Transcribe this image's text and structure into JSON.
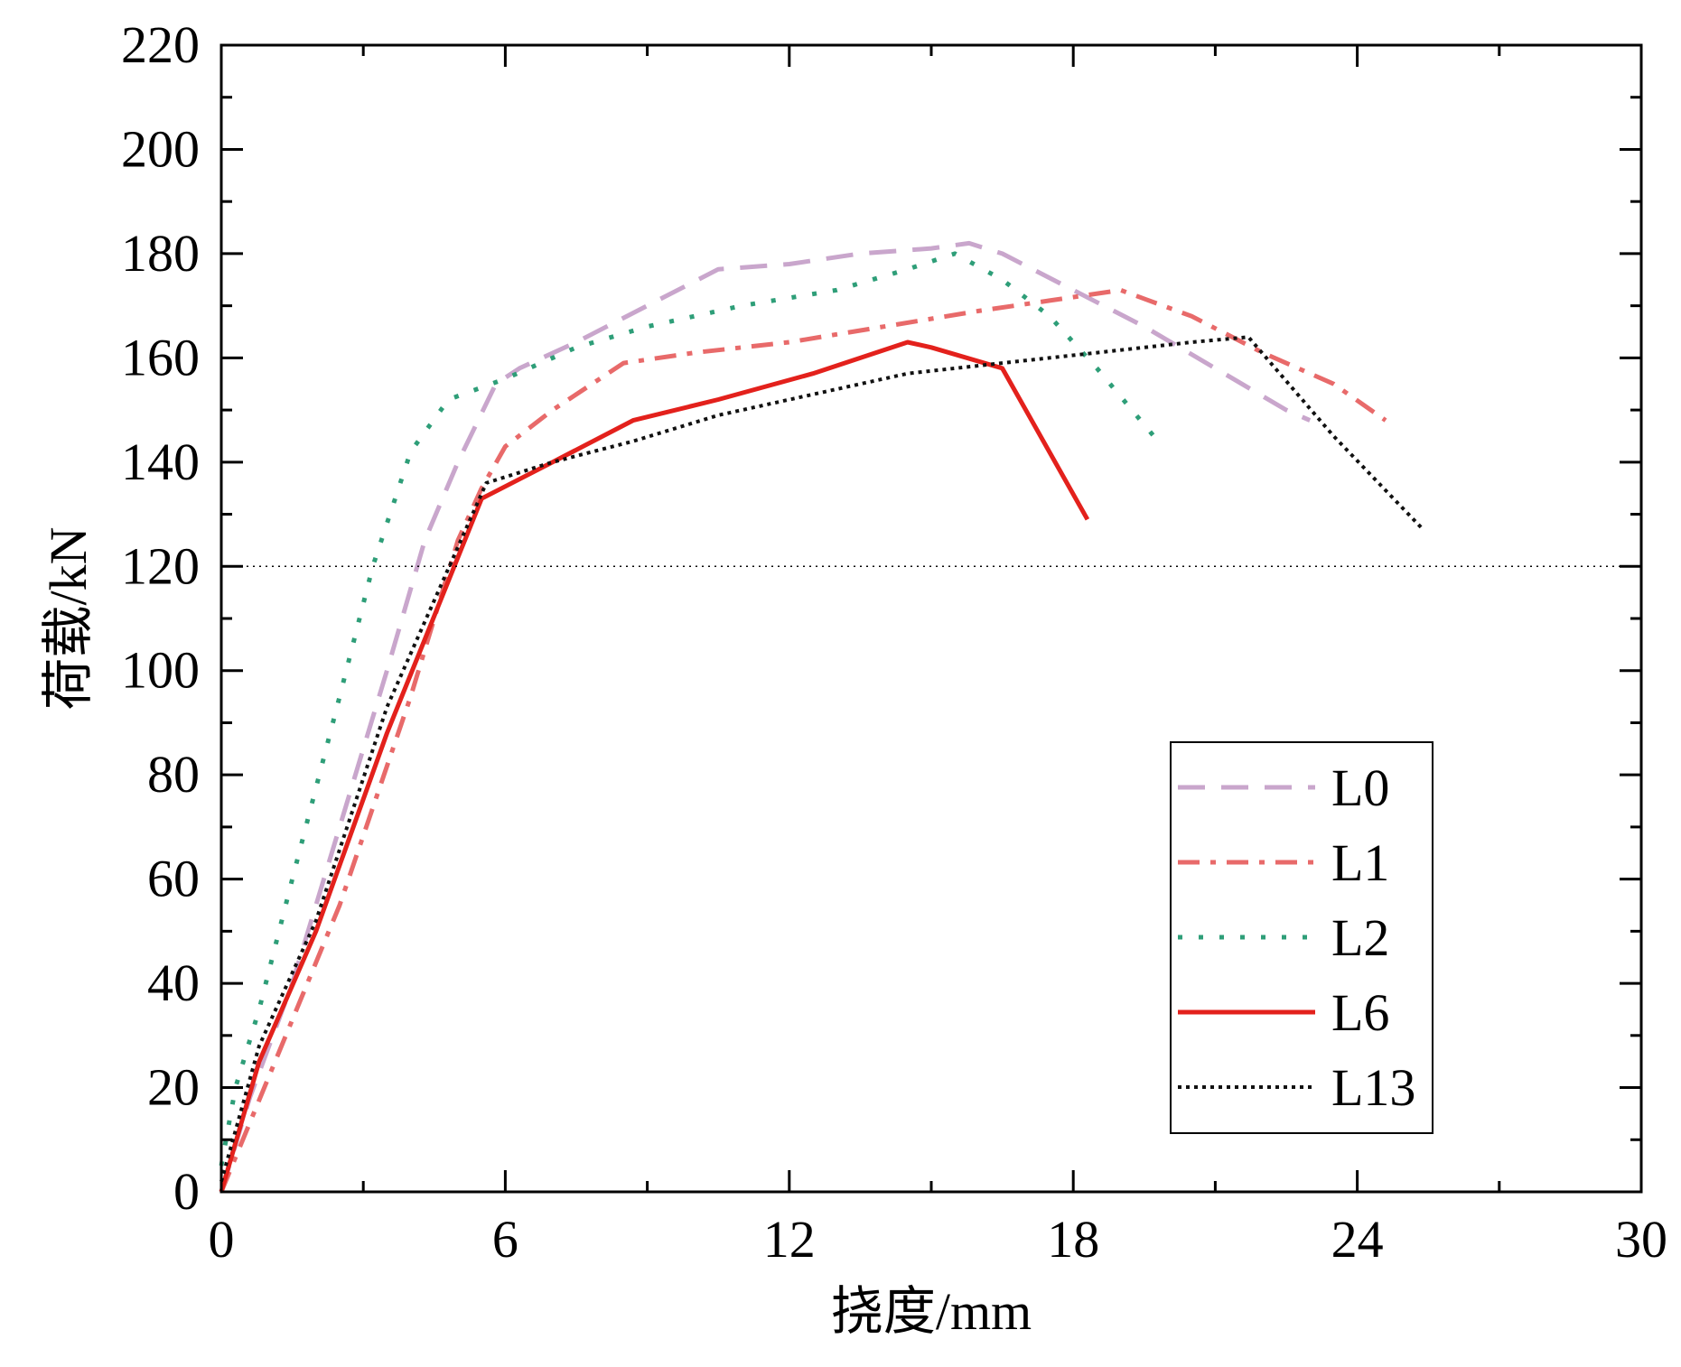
{
  "chart_data": {
    "type": "line",
    "xlabel": "挠度/mm",
    "ylabel": "荷载/kN",
    "xlim": [
      0,
      30
    ],
    "ylim": [
      0,
      220
    ],
    "xticks": [
      "0",
      "6",
      "12",
      "18",
      "24",
      "30"
    ],
    "yticks": [
      "0",
      "20",
      "40",
      "60",
      "80",
      "100",
      "120",
      "140",
      "160",
      "180",
      "200",
      "220"
    ],
    "reference_line_y": 120,
    "grid": false,
    "legend_position": "bottom-right",
    "series": [
      {
        "name": "L0",
        "color": "#c9a6cc",
        "dash": "dashed",
        "points": [
          [
            0,
            0
          ],
          [
            0.6,
            18
          ],
          [
            1.5,
            40
          ],
          [
            2.5,
            70
          ],
          [
            3.5,
            100
          ],
          [
            4.3,
            125
          ],
          [
            5.0,
            140
          ],
          [
            5.8,
            155
          ],
          [
            6.3,
            158
          ],
          [
            7.5,
            163
          ],
          [
            9.0,
            170
          ],
          [
            10.5,
            177
          ],
          [
            12.0,
            178
          ],
          [
            13.5,
            180
          ],
          [
            15.0,
            181
          ],
          [
            15.8,
            182
          ],
          [
            16.5,
            180
          ],
          [
            18.0,
            173
          ],
          [
            19.5,
            166
          ],
          [
            21.0,
            158
          ],
          [
            22.5,
            150
          ],
          [
            23.0,
            148
          ]
        ]
      },
      {
        "name": "L1",
        "color": "#e86a6a",
        "dash": "dashdot",
        "points": [
          [
            0,
            0
          ],
          [
            1.0,
            22
          ],
          [
            2.5,
            55
          ],
          [
            4.0,
            95
          ],
          [
            5.0,
            125
          ],
          [
            5.5,
            135
          ],
          [
            6.0,
            143
          ],
          [
            7.0,
            150
          ],
          [
            8.5,
            159
          ],
          [
            10.0,
            161
          ],
          [
            12.0,
            163
          ],
          [
            14.0,
            166
          ],
          [
            16.0,
            169
          ],
          [
            17.5,
            171
          ],
          [
            19.0,
            173
          ],
          [
            20.5,
            168
          ],
          [
            22.0,
            161
          ],
          [
            23.5,
            155
          ],
          [
            24.6,
            148
          ]
        ]
      },
      {
        "name": "L2",
        "color": "#2e9e78",
        "dash": "dotted",
        "points": [
          [
            0,
            5
          ],
          [
            0.3,
            20
          ],
          [
            0.8,
            35
          ],
          [
            1.5,
            60
          ],
          [
            2.5,
            95
          ],
          [
            3.2,
            120
          ],
          [
            4.0,
            142
          ],
          [
            4.8,
            152
          ],
          [
            6.0,
            156
          ],
          [
            7.5,
            162
          ],
          [
            9.0,
            166
          ],
          [
            11.0,
            170
          ],
          [
            13.0,
            173
          ],
          [
            14.5,
            177
          ],
          [
            15.5,
            180
          ],
          [
            16.5,
            175
          ],
          [
            17.5,
            168
          ],
          [
            18.5,
            158
          ],
          [
            19.7,
            145
          ]
        ]
      },
      {
        "name": "L6",
        "color": "#e3211c",
        "dash": "solid",
        "points": [
          [
            0,
            0
          ],
          [
            0.8,
            25
          ],
          [
            2.0,
            50
          ],
          [
            3.5,
            88
          ],
          [
            5.5,
            133
          ],
          [
            7.0,
            140
          ],
          [
            8.7,
            148
          ],
          [
            10.5,
            152
          ],
          [
            12.5,
            157
          ],
          [
            14.5,
            163
          ],
          [
            15.0,
            162
          ],
          [
            16.5,
            158
          ],
          [
            18.3,
            129
          ]
        ]
      },
      {
        "name": "L13",
        "color": "#111111",
        "dash": "densely-dotted",
        "points": [
          [
            0,
            2
          ],
          [
            0.8,
            28
          ],
          [
            2.0,
            52
          ],
          [
            3.5,
            93
          ],
          [
            5.6,
            136
          ],
          [
            7.0,
            140
          ],
          [
            8.7,
            144
          ],
          [
            10.5,
            149
          ],
          [
            12.5,
            153
          ],
          [
            14.5,
            157
          ],
          [
            16.5,
            159
          ],
          [
            18.5,
            161
          ],
          [
            20.5,
            163
          ],
          [
            21.7,
            164
          ],
          [
            23.5,
            145
          ],
          [
            25.4,
            127
          ]
        ]
      }
    ]
  }
}
